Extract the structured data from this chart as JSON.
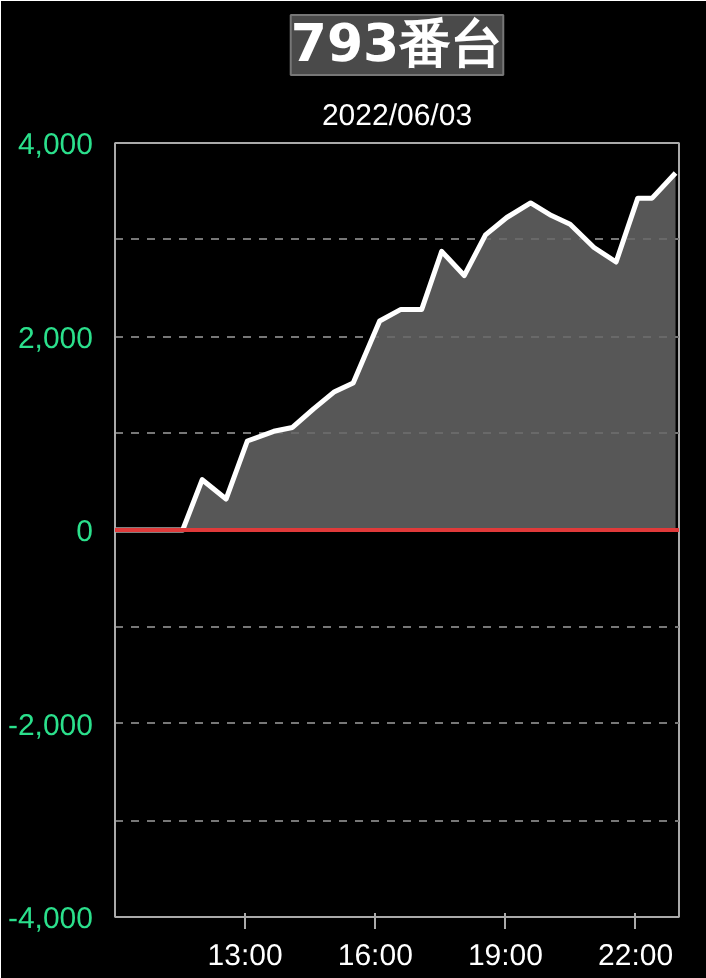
{
  "chart_data": {
    "type": "area",
    "title": "793番台",
    "subtitle": "2022/06/03",
    "x": [
      10.0,
      11.56,
      12.01,
      12.56,
      13.05,
      13.66,
      14.09,
      14.57,
      15.06,
      15.49,
      16.1,
      16.59,
      17.07,
      17.53,
      18.05,
      18.54,
      19.03,
      19.58,
      20.06,
      20.49,
      21.04,
      21.55,
      22.05,
      22.38,
      22.92
    ],
    "series": [
      {
        "color": "#ffffff",
        "values": [
          0,
          0,
          520,
          320,
          920,
          1020,
          1060,
          1250,
          1430,
          1520,
          2160,
          2280,
          2280,
          2880,
          2630,
          3050,
          3230,
          3380,
          3250,
          3160,
          2920,
          2770,
          3430,
          3430,
          3690
        ]
      }
    ],
    "xlim": [
      10,
      23
    ],
    "ylim": [
      -4000,
      4000
    ],
    "xticks": [
      {
        "value": 13,
        "label": "13:00"
      },
      {
        "value": 16,
        "label": "16:00"
      },
      {
        "value": 19,
        "label": "19:00"
      },
      {
        "value": 22,
        "label": "22:00"
      }
    ],
    "yticks": [
      {
        "value": 4000,
        "label": "4,000"
      },
      {
        "value": 3000,
        "label": null
      },
      {
        "value": 2000,
        "label": "2,000"
      },
      {
        "value": 1000,
        "label": null
      },
      {
        "value": 0,
        "label": "0"
      },
      {
        "value": -1000,
        "label": null
      },
      {
        "value": -2000,
        "label": "-2,000"
      },
      {
        "value": -3000,
        "label": null
      },
      {
        "value": -4000,
        "label": "-4,000"
      }
    ],
    "grid": "y",
    "ref_lines": [
      {
        "axis": "y",
        "value": 0,
        "color": "#e03a3a"
      }
    ]
  }
}
